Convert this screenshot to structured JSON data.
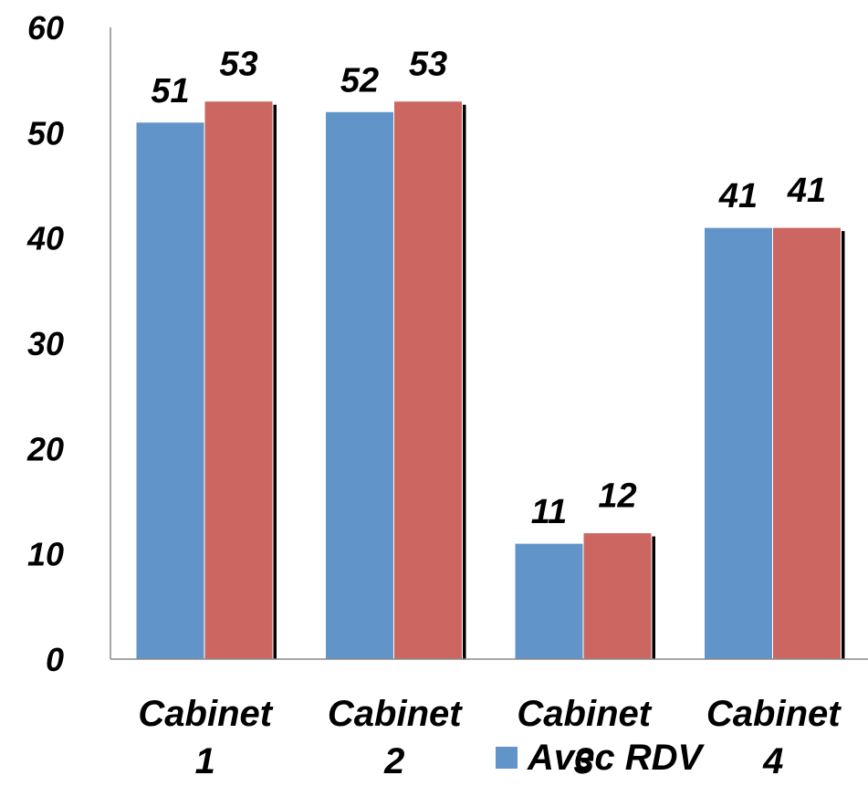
{
  "chart_data": {
    "type": "bar",
    "categories": [
      "Cabinet 1",
      "Cabinet 2",
      "Cabinet 3",
      "Cabinet 4"
    ],
    "category_lines": [
      [
        "Cabinet",
        "1"
      ],
      [
        "Cabinet",
        "2"
      ],
      [
        "Cabinet",
        "3"
      ],
      [
        "Cabinet",
        "4"
      ]
    ],
    "series": [
      {
        "name": "Avec RDV",
        "values": [
          51,
          52,
          11,
          41
        ],
        "color": "#6194C8"
      },
      {
        "values": [
          53,
          53,
          12,
          41
        ],
        "color": "#CC6661"
      }
    ],
    "y_ticks": [
      "0",
      "10",
      "20",
      "30",
      "40",
      "50",
      "60"
    ],
    "ylim": [
      0,
      60
    ],
    "grid": false,
    "legend_position": "bottom",
    "legend": [
      {
        "label": "Avec RDV",
        "color": "#6194C8"
      }
    ],
    "title": "",
    "xlabel": "",
    "ylabel": ""
  }
}
